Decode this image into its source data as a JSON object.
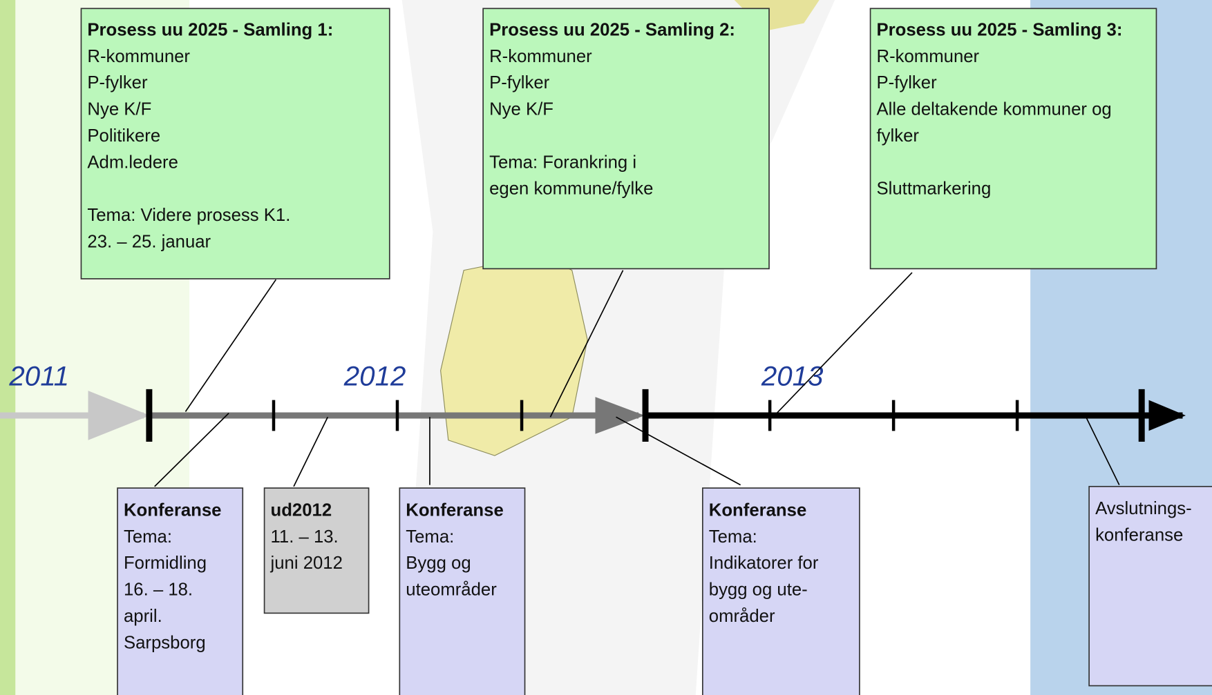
{
  "years": [
    "2011",
    "2012",
    "2013"
  ],
  "top_boxes": [
    {
      "title": "Prosess uu 2025 - Samling 1:",
      "blocks": [
        [
          "R-kommuner",
          "P-fylker",
          "Nye K/F",
          "Politikere",
          "Adm.ledere"
        ],
        [
          "Tema: Videre prosess K1.",
          "23. – 25. januar"
        ]
      ]
    },
    {
      "title": "Prosess uu 2025 - Samling 2:",
      "blocks": [
        [
          "R-kommuner",
          "P-fylker",
          "Nye K/F"
        ],
        [
          "Tema: Forankring i",
          "egen kommune/fylke"
        ]
      ]
    },
    {
      "title": "Prosess uu 2025 - Samling 3:",
      "blocks": [
        [
          "R-kommuner",
          "P-fylker",
          "Alle deltakende kommuner og",
          "fylker"
        ],
        [
          "Sluttmarkering"
        ]
      ]
    }
  ],
  "bottom_boxes": [
    {
      "title": "Konferanse",
      "lines": [
        "Tema:",
        "Formidling",
        "16. – 18.",
        "april.",
        "Sarpsborg"
      ]
    },
    {
      "title": "ud2012",
      "lines": [
        "11. – 13.",
        "juni 2012"
      ]
    },
    {
      "title": "Konferanse",
      "lines": [
        "Tema:",
        "Bygg og",
        "uteområder"
      ]
    },
    {
      "title": "Konferanse",
      "lines": [
        "Tema:",
        "Indikatorer for",
        "bygg og ute-",
        "områder"
      ]
    },
    {
      "lines": [
        "Avslutnings-",
        "konferanse"
      ]
    }
  ]
}
